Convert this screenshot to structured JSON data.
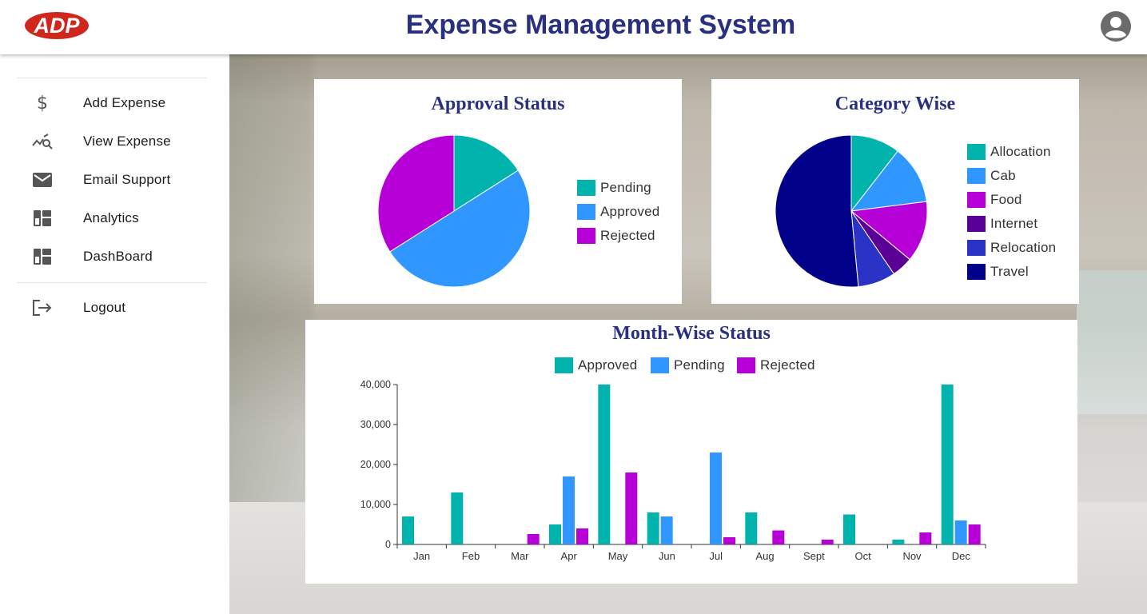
{
  "header": {
    "logo_text": "ADP",
    "title": "Expense Management System"
  },
  "sidebar": {
    "items": [
      {
        "label": "Add Expense",
        "icon": "dollar-icon"
      },
      {
        "label": "View Expense",
        "icon": "chart-search-icon"
      },
      {
        "label": "Email Support",
        "icon": "mail-icon"
      },
      {
        "label": "Analytics",
        "icon": "dashboard-icon"
      },
      {
        "label": "DashBoard",
        "icon": "dashboard-icon"
      }
    ],
    "logout": {
      "label": "Logout",
      "icon": "logout-icon"
    }
  },
  "colors": {
    "title": "#28307f",
    "logo": "#d0271d"
  },
  "chart_data": [
    {
      "type": "pie",
      "title": "Approval Status",
      "labels": [
        "Pending",
        "Approved",
        "Rejected"
      ],
      "values": [
        16,
        50,
        34
      ],
      "colors": [
        "#00b3ad",
        "#2f97ff",
        "#b600d7"
      ]
    },
    {
      "type": "pie",
      "title": "Category Wise",
      "labels": [
        "Allocation",
        "Cab",
        "Food",
        "Internet",
        "Relocation",
        "Travel"
      ],
      "values": [
        10.5,
        12.5,
        13,
        4.5,
        8,
        51.5
      ],
      "colors": [
        "#00b3ad",
        "#2f97ff",
        "#b600d7",
        "#5a0096",
        "#2b33c7",
        "#000088"
      ]
    },
    {
      "type": "bar",
      "title": "Month-Wise Status",
      "categories": [
        "Jan",
        "Feb",
        "Mar",
        "Apr",
        "May",
        "Jun",
        "Jul",
        "Aug",
        "Sept",
        "Oct",
        "Nov",
        "Dec"
      ],
      "series": [
        {
          "name": "Approved",
          "color": "#00b3ad",
          "values": [
            7000,
            13000,
            0,
            5000,
            40000,
            8000,
            0,
            8000,
            0,
            7500,
            1200,
            40000
          ]
        },
        {
          "name": "Pending",
          "color": "#2f97ff",
          "values": [
            0,
            0,
            0,
            17000,
            0,
            7000,
            23000,
            0,
            0,
            0,
            0,
            6000
          ]
        },
        {
          "name": "Rejected",
          "color": "#b600d7",
          "values": [
            0,
            0,
            2600,
            4000,
            18000,
            0,
            1800,
            3500,
            1200,
            0,
            3000,
            5000
          ]
        }
      ],
      "yticks": [
        "0",
        "10,000",
        "20,000",
        "30,000",
        "40,000"
      ],
      "ylim": [
        0,
        40000
      ],
      "legend_position": "top"
    }
  ]
}
